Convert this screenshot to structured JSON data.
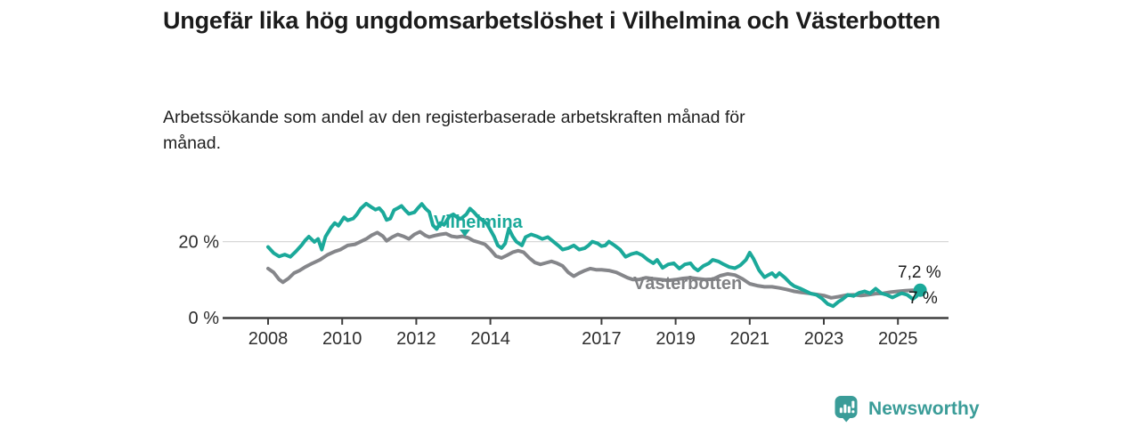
{
  "chart_data": {
    "type": "line",
    "title": "Ungefär lika hög ungdomsarbetslöshet i Vilhelmina och Västerbotten",
    "subtitle": "Arbetssökande som andel av den registerbaserade arbetskraften månad för månad.",
    "xlabel": "",
    "ylabel": "",
    "grid": "horizontal, only at 20 %",
    "legend_position": "inline labels on lines",
    "x_range": [
      2006.8,
      2026.4
    ],
    "y_range": [
      0,
      33
    ],
    "x_ticks": [
      2008,
      2010,
      2012,
      2014,
      2017,
      2019,
      2021,
      2023,
      2025
    ],
    "y_ticks": [
      {
        "value": 0,
        "label": "0 %"
      },
      {
        "value": 20,
        "label": "20 %"
      }
    ],
    "series": [
      {
        "name": "Vilhelmina",
        "color": "#1ba99a",
        "end_label": "7,2 %",
        "end_value": 7.2,
        "end_dot": true,
        "points": [
          [
            2008.0,
            18.6
          ],
          [
            2008.15,
            17.0
          ],
          [
            2008.3,
            16.1
          ],
          [
            2008.45,
            16.6
          ],
          [
            2008.6,
            16.0
          ],
          [
            2008.75,
            17.4
          ],
          [
            2008.9,
            19.0
          ],
          [
            2009.0,
            20.3
          ],
          [
            2009.1,
            21.3
          ],
          [
            2009.25,
            19.9
          ],
          [
            2009.35,
            20.7
          ],
          [
            2009.45,
            17.9
          ],
          [
            2009.55,
            21.3
          ],
          [
            2009.7,
            23.7
          ],
          [
            2009.8,
            24.9
          ],
          [
            2009.9,
            24.2
          ],
          [
            2010.05,
            26.4
          ],
          [
            2010.15,
            25.6
          ],
          [
            2010.3,
            26.1
          ],
          [
            2010.4,
            27.2
          ],
          [
            2010.5,
            28.7
          ],
          [
            2010.65,
            30.0
          ],
          [
            2010.8,
            29.0
          ],
          [
            2010.9,
            28.4
          ],
          [
            2011.0,
            28.8
          ],
          [
            2011.1,
            27.7
          ],
          [
            2011.2,
            25.7
          ],
          [
            2011.3,
            26.1
          ],
          [
            2011.4,
            28.3
          ],
          [
            2011.5,
            28.8
          ],
          [
            2011.6,
            29.4
          ],
          [
            2011.7,
            28.3
          ],
          [
            2011.8,
            27.3
          ],
          [
            2011.95,
            27.7
          ],
          [
            2012.05,
            28.9
          ],
          [
            2012.15,
            29.9
          ],
          [
            2012.25,
            28.7
          ],
          [
            2012.35,
            27.8
          ],
          [
            2012.45,
            24.3
          ],
          [
            2012.55,
            23.3
          ],
          [
            2012.65,
            24.9
          ],
          [
            2012.75,
            24.4
          ],
          [
            2012.9,
            26.7
          ],
          [
            2013.0,
            27.2
          ],
          [
            2013.1,
            26.4
          ],
          [
            2013.2,
            26.0
          ],
          [
            2013.35,
            27.2
          ],
          [
            2013.45,
            28.7
          ],
          [
            2013.55,
            27.8
          ],
          [
            2013.65,
            26.7
          ],
          [
            2013.8,
            25.5
          ],
          [
            2013.9,
            24.8
          ],
          [
            2014.0,
            23.1
          ],
          [
            2014.1,
            21.3
          ],
          [
            2014.2,
            19.0
          ],
          [
            2014.3,
            18.3
          ],
          [
            2014.4,
            19.5
          ],
          [
            2014.5,
            23.4
          ],
          [
            2014.6,
            21.4
          ],
          [
            2014.7,
            20.0
          ],
          [
            2014.85,
            19.0
          ],
          [
            2014.95,
            21.2
          ],
          [
            2015.1,
            21.9
          ],
          [
            2015.25,
            21.4
          ],
          [
            2015.4,
            20.7
          ],
          [
            2015.55,
            21.2
          ],
          [
            2015.7,
            20.0
          ],
          [
            2015.85,
            18.8
          ],
          [
            2015.95,
            17.9
          ],
          [
            2016.1,
            18.3
          ],
          [
            2016.25,
            19.0
          ],
          [
            2016.4,
            17.9
          ],
          [
            2016.55,
            18.3
          ],
          [
            2016.65,
            19.0
          ],
          [
            2016.75,
            20.0
          ],
          [
            2016.9,
            19.5
          ],
          [
            2017.0,
            18.8
          ],
          [
            2017.1,
            19.0
          ],
          [
            2017.2,
            20.0
          ],
          [
            2017.35,
            19.0
          ],
          [
            2017.5,
            17.9
          ],
          [
            2017.65,
            16.0
          ],
          [
            2017.8,
            16.7
          ],
          [
            2017.95,
            17.1
          ],
          [
            2018.1,
            16.4
          ],
          [
            2018.25,
            15.2
          ],
          [
            2018.4,
            14.3
          ],
          [
            2018.5,
            15.2
          ],
          [
            2018.65,
            13.1
          ],
          [
            2018.8,
            14.0
          ],
          [
            2018.95,
            14.3
          ],
          [
            2019.1,
            12.9
          ],
          [
            2019.25,
            14.0
          ],
          [
            2019.4,
            14.3
          ],
          [
            2019.5,
            13.1
          ],
          [
            2019.6,
            12.4
          ],
          [
            2019.75,
            13.6
          ],
          [
            2019.9,
            14.3
          ],
          [
            2020.0,
            15.2
          ],
          [
            2020.15,
            14.8
          ],
          [
            2020.3,
            14.0
          ],
          [
            2020.45,
            13.3
          ],
          [
            2020.6,
            13.0
          ],
          [
            2020.75,
            13.8
          ],
          [
            2020.9,
            15.2
          ],
          [
            2021.0,
            17.1
          ],
          [
            2021.1,
            15.5
          ],
          [
            2021.25,
            12.5
          ],
          [
            2021.4,
            10.6
          ],
          [
            2021.5,
            11.2
          ],
          [
            2021.6,
            11.7
          ],
          [
            2021.7,
            10.7
          ],
          [
            2021.8,
            11.7
          ],
          [
            2021.95,
            10.5
          ],
          [
            2022.1,
            9.0
          ],
          [
            2022.2,
            8.3
          ],
          [
            2022.35,
            7.7
          ],
          [
            2022.5,
            7.0
          ],
          [
            2022.65,
            6.3
          ],
          [
            2022.8,
            6.0
          ],
          [
            2022.95,
            5.0
          ],
          [
            2023.1,
            3.6
          ],
          [
            2023.25,
            3.0
          ],
          [
            2023.4,
            4.2
          ],
          [
            2023.5,
            4.8
          ],
          [
            2023.65,
            6.0
          ],
          [
            2023.8,
            5.7
          ],
          [
            2023.95,
            6.5
          ],
          [
            2024.1,
            6.9
          ],
          [
            2024.25,
            6.4
          ],
          [
            2024.4,
            7.6
          ],
          [
            2024.55,
            6.4
          ],
          [
            2024.7,
            6.0
          ],
          [
            2024.85,
            5.3
          ],
          [
            2025.0,
            6.0
          ],
          [
            2025.1,
            6.4
          ],
          [
            2025.25,
            6.0
          ],
          [
            2025.4,
            4.9
          ],
          [
            2025.5,
            5.6
          ],
          [
            2025.6,
            7.2
          ]
        ]
      },
      {
        "name": "Västerbotten",
        "color": "#85868a",
        "end_label": "7 %",
        "end_value": 7.0,
        "end_dot": false,
        "points": [
          [
            2008.0,
            12.9
          ],
          [
            2008.15,
            11.9
          ],
          [
            2008.3,
            10.0
          ],
          [
            2008.4,
            9.3
          ],
          [
            2008.55,
            10.3
          ],
          [
            2008.7,
            11.7
          ],
          [
            2008.85,
            12.4
          ],
          [
            2009.0,
            13.3
          ],
          [
            2009.2,
            14.3
          ],
          [
            2009.4,
            15.2
          ],
          [
            2009.6,
            16.5
          ],
          [
            2009.8,
            17.4
          ],
          [
            2009.95,
            17.9
          ],
          [
            2010.15,
            19.0
          ],
          [
            2010.35,
            19.3
          ],
          [
            2010.5,
            20.0
          ],
          [
            2010.65,
            20.7
          ],
          [
            2010.8,
            21.7
          ],
          [
            2010.95,
            22.4
          ],
          [
            2011.1,
            21.4
          ],
          [
            2011.2,
            20.2
          ],
          [
            2011.35,
            21.2
          ],
          [
            2011.5,
            21.9
          ],
          [
            2011.65,
            21.4
          ],
          [
            2011.8,
            20.7
          ],
          [
            2011.95,
            21.9
          ],
          [
            2012.1,
            22.6
          ],
          [
            2012.25,
            21.6
          ],
          [
            2012.35,
            21.2
          ],
          [
            2012.5,
            21.6
          ],
          [
            2012.65,
            21.9
          ],
          [
            2012.8,
            22.1
          ],
          [
            2012.95,
            21.4
          ],
          [
            2013.1,
            21.2
          ],
          [
            2013.25,
            21.4
          ],
          [
            2013.4,
            21.0
          ],
          [
            2013.55,
            20.2
          ],
          [
            2013.7,
            19.8
          ],
          [
            2013.85,
            19.3
          ],
          [
            2014.0,
            17.9
          ],
          [
            2014.15,
            16.2
          ],
          [
            2014.3,
            15.7
          ],
          [
            2014.45,
            16.4
          ],
          [
            2014.6,
            17.2
          ],
          [
            2014.75,
            17.6
          ],
          [
            2014.9,
            17.2
          ],
          [
            2015.05,
            15.7
          ],
          [
            2015.2,
            14.5
          ],
          [
            2015.35,
            14.0
          ],
          [
            2015.5,
            14.4
          ],
          [
            2015.65,
            14.8
          ],
          [
            2015.8,
            14.3
          ],
          [
            2015.95,
            13.6
          ],
          [
            2016.1,
            11.9
          ],
          [
            2016.25,
            10.9
          ],
          [
            2016.4,
            11.7
          ],
          [
            2016.55,
            12.4
          ],
          [
            2016.7,
            12.9
          ],
          [
            2016.85,
            12.6
          ],
          [
            2017.0,
            12.6
          ],
          [
            2017.2,
            12.4
          ],
          [
            2017.4,
            11.9
          ],
          [
            2017.55,
            11.2
          ],
          [
            2017.7,
            10.5
          ],
          [
            2017.85,
            10.0
          ],
          [
            2018.0,
            10.0
          ],
          [
            2018.2,
            10.5
          ],
          [
            2018.4,
            10.2
          ],
          [
            2018.6,
            10.0
          ],
          [
            2018.8,
            9.8
          ],
          [
            2019.0,
            10.0
          ],
          [
            2019.2,
            10.3
          ],
          [
            2019.4,
            10.5
          ],
          [
            2019.6,
            10.2
          ],
          [
            2019.8,
            10.0
          ],
          [
            2020.0,
            10.1
          ],
          [
            2020.2,
            11.0
          ],
          [
            2020.4,
            11.5
          ],
          [
            2020.6,
            11.2
          ],
          [
            2020.8,
            10.2
          ],
          [
            2021.0,
            8.9
          ],
          [
            2021.2,
            8.4
          ],
          [
            2021.4,
            8.1
          ],
          [
            2021.6,
            8.1
          ],
          [
            2021.8,
            7.8
          ],
          [
            2022.0,
            7.4
          ],
          [
            2022.2,
            6.9
          ],
          [
            2022.4,
            6.6
          ],
          [
            2022.6,
            6.4
          ],
          [
            2022.8,
            6.1
          ],
          [
            2023.0,
            5.8
          ],
          [
            2023.2,
            5.2
          ],
          [
            2023.4,
            5.5
          ],
          [
            2023.6,
            5.9
          ],
          [
            2023.8,
            6.0
          ],
          [
            2024.0,
            5.8
          ],
          [
            2024.2,
            6.0
          ],
          [
            2024.4,
            6.3
          ],
          [
            2024.6,
            6.4
          ],
          [
            2024.8,
            6.7
          ],
          [
            2025.0,
            6.9
          ],
          [
            2025.2,
            7.1
          ],
          [
            2025.4,
            7.2
          ],
          [
            2025.6,
            7.0
          ]
        ]
      }
    ]
  },
  "branding": {
    "logo_text": "Newsworthy",
    "logo_color": "#3a9c98"
  },
  "style_colors": {
    "accent_teal": "#1ba99a",
    "series_gray": "#85868a",
    "axis_line": "#3f3f3f",
    "gridline": "#d8d8d8",
    "text": "#1b1b1b"
  }
}
